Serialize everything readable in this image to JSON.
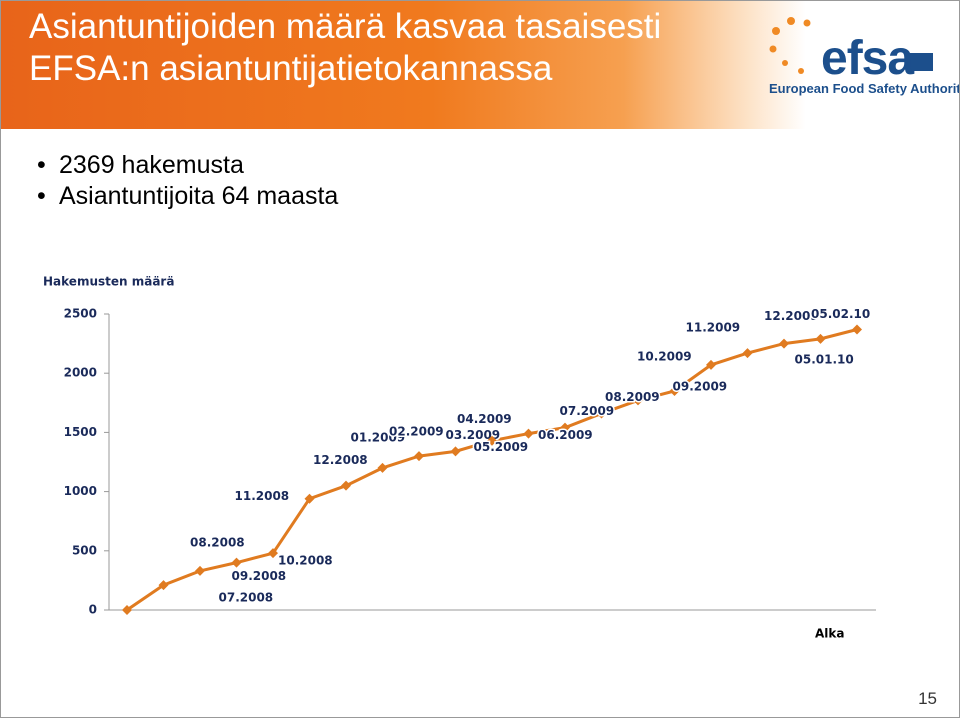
{
  "slide": {
    "title_lines": [
      "Asiantuntijoiden määrä kasvaa tasaisesti",
      "EFSA:n asiantuntijatietokannassa"
    ],
    "bullets": [
      "2369 hakemusta",
      "Asiantuntijoita  64 maasta"
    ],
    "logo_name": "efsa",
    "logo_subtitle": "European Food Safety Authority",
    "page_number": "15"
  },
  "chart_data": {
    "type": "line",
    "y_axis_title": "Hakemusten määrä",
    "x_axis_title": "Alka",
    "categories": [
      null,
      "07.2008",
      "08.2008",
      "09.2008",
      "10.2008",
      "11.2008",
      "12.2008",
      "01.2009",
      "02.2009",
      "03.2009",
      "04.2009",
      "05.2009",
      "06.2009",
      "07.2009",
      "08.2009",
      "09.2009",
      "10.2009",
      "11.2009",
      "12.2009",
      "05.01.10",
      "05.02.10"
    ],
    "values": [
      0,
      210,
      330,
      400,
      480,
      940,
      1050,
      1200,
      1300,
      1340,
      1430,
      1490,
      1540,
      1660,
      1770,
      1850,
      2070,
      2170,
      2250,
      2290,
      2369
    ],
    "color": "#e07b20",
    "ylim": [
      0,
      2500
    ],
    "yticks": [
      0,
      500,
      1000,
      1500,
      2000,
      2500
    ]
  }
}
